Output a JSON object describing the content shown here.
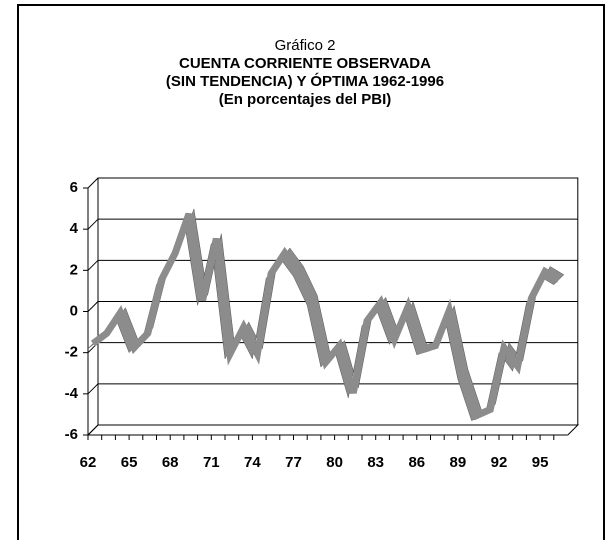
{
  "chart_data": {
    "type": "line",
    "title": "Gráfico 2",
    "subtitle": [
      "CUENTA CORRIENTE OBSERVADA",
      "(SIN TENDENCIA) Y ÓPTIMA 1962-1996",
      "(En porcentajes del PBI)"
    ],
    "categories": [
      "62",
      null,
      null,
      "65",
      null,
      null,
      "68",
      null,
      null,
      "71",
      null,
      null,
      "74",
      null,
      null,
      "77",
      null,
      null,
      "80",
      null,
      null,
      "83",
      null,
      null,
      "86",
      null,
      null,
      "89",
      null,
      null,
      "92",
      null,
      null,
      "95",
      null
    ],
    "series": [
      {
        "name": "Cuenta corriente",
        "color": "#8c8c8c",
        "values": [
          -1.8,
          -1.3,
          -0.3,
          -2.0,
          -1.3,
          1.3,
          2.6,
          4.5,
          0.3,
          3.3,
          -2.3,
          -1.0,
          -2.3,
          1.6,
          2.6,
          1.7,
          0.3,
          -2.7,
          -1.9,
          -4.2,
          -0.7,
          0.2,
          -1.6,
          0.0,
          -2.1,
          -1.9,
          -0.2,
          -3.3,
          -5.3,
          -5.0,
          -2.0,
          -2.9,
          0.4,
          1.7,
          1.3
        ]
      }
    ],
    "ylim": [
      -6,
      6
    ],
    "yticks": [
      -6,
      -4,
      -2,
      0,
      2,
      4,
      6
    ],
    "grid": true
  }
}
